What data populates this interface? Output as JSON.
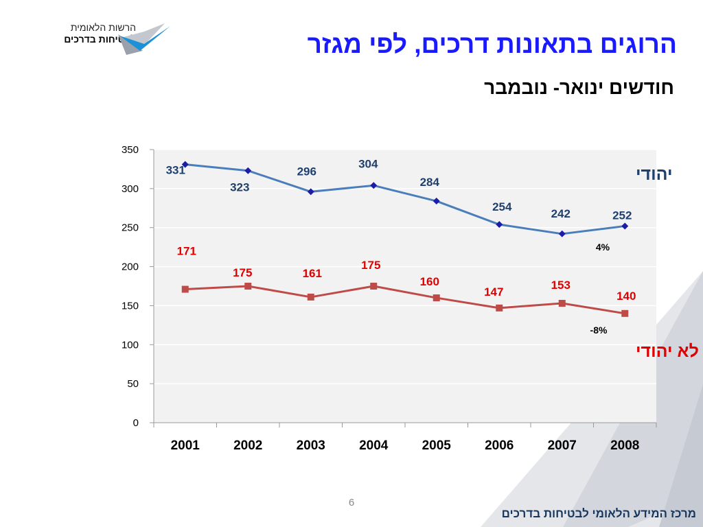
{
  "slide": {
    "title": "הרוגים בתאונות דרכים, לפי מגזר",
    "subtitle": "חודשים ינואר- נובמבר",
    "page_number": "6",
    "footer": "מרכז המידע הלאומי לבטיחות בדרכים"
  },
  "logo": {
    "line1": "הרשות הלאומית",
    "line2": "לבטיחות בדרכים"
  },
  "colors": {
    "title": "#1a1aff",
    "series_jewish": "#4a7ebb",
    "series_jewish_marker": "#1c1ca8",
    "series_nonjewish": "#be4b48",
    "label_jewish": "#1f3f6e",
    "label_nonjewish": "#e00000",
    "plot_bg": "#f2f2f2"
  },
  "chart_data": {
    "type": "line",
    "categories": [
      "2001",
      "2002",
      "2003",
      "2004",
      "2005",
      "2006",
      "2007",
      "2008"
    ],
    "ylim": [
      0,
      350
    ],
    "yticks": [
      "0",
      "50",
      "100",
      "150",
      "200",
      "250",
      "300",
      "350"
    ],
    "grid": true,
    "series": [
      {
        "name": "יהודי",
        "values": [
          331,
          323,
          296,
          304,
          284,
          254,
          242,
          252
        ],
        "labels": [
          "331",
          "323",
          "296",
          "304",
          "284",
          "254",
          "242",
          "252"
        ],
        "annotation": "4%"
      },
      {
        "name": "לא יהודי",
        "values": [
          171,
          175,
          161,
          175,
          160,
          147,
          153,
          140
        ],
        "labels": [
          "171",
          "175",
          "161",
          "175",
          "160",
          "147",
          "153",
          "140"
        ],
        "annotation": "-8%"
      }
    ]
  }
}
